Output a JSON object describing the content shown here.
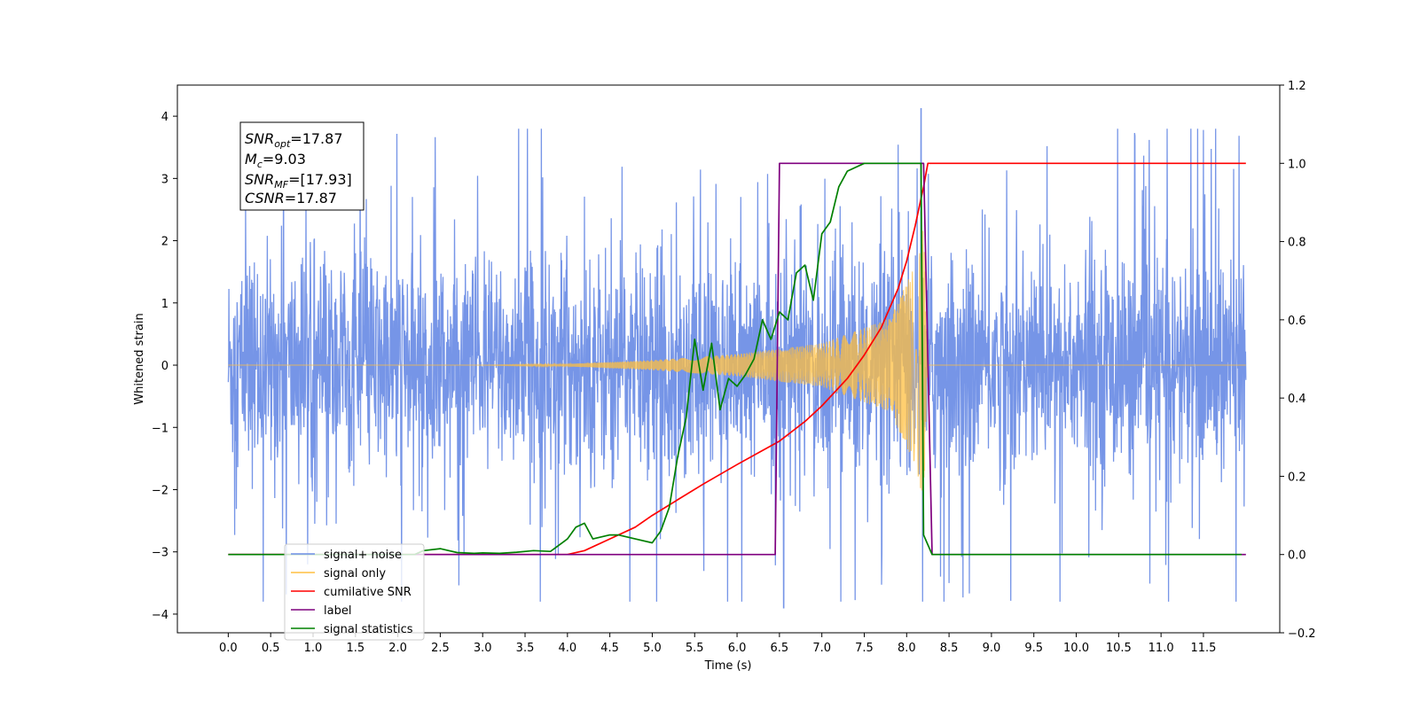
{
  "chart_data": {
    "type": "line",
    "xlabel": "Time (s)",
    "ylabel": "Whitened strain",
    "xlim": [
      -0.6,
      12.4
    ],
    "ylim": [
      -4.3,
      4.5
    ],
    "y2lim": [
      -0.2,
      1.2
    ],
    "xticks": [
      0.0,
      0.5,
      1.0,
      1.5,
      2.0,
      2.5,
      3.0,
      3.5,
      4.0,
      4.5,
      5.0,
      5.5,
      6.0,
      6.5,
      7.0,
      7.5,
      8.0,
      8.5,
      9.0,
      9.5,
      10.0,
      10.5,
      11.0,
      11.5
    ],
    "xtick_labels": [
      "0.0",
      "0.5",
      "1.0",
      "1.5",
      "2.0",
      "2.5",
      "3.0",
      "3.5",
      "4.0",
      "4.5",
      "5.0",
      "5.5",
      "6.0",
      "6.5",
      "7.0",
      "7.5",
      "8.0",
      "8.5",
      "9.0",
      "9.5",
      "10.0",
      "10.5",
      "11.0",
      "11.5"
    ],
    "yticks": [
      -4,
      -3,
      -2,
      -1,
      0,
      1,
      2,
      3,
      4
    ],
    "ytick_labels": [
      "−4",
      "−3",
      "−2",
      "−1",
      "0",
      "1",
      "2",
      "3",
      "4"
    ],
    "y2ticks": [
      -0.2,
      0.0,
      0.2,
      0.4,
      0.6,
      0.8,
      1.0,
      1.2
    ],
    "y2tick_labels": [
      "−0.2",
      "0.0",
      "0.2",
      "0.4",
      "0.6",
      "0.8",
      "1.0",
      "1.2"
    ],
    "grid": false,
    "legend_position": "lower-left",
    "annotation": {
      "lines": [
        {
          "base": "SNR",
          "sub": "opt",
          "rest": "=17.87"
        },
        {
          "base": "M",
          "sub": "c",
          "rest": "=9.03"
        },
        {
          "base": "SNR",
          "sub": "MF",
          "rest": "=[17.93]"
        },
        {
          "base": "CSNR",
          "sub": "",
          "rest": "=17.87"
        }
      ]
    },
    "series": [
      {
        "name": "signal+ noise",
        "color": "#6f8fe6",
        "axis": "left",
        "kind": "noise",
        "x_range": [
          0.0,
          12.0
        ],
        "envelope_typical": 1.6,
        "envelope_peak": 3.8,
        "notable_extremes": [
          [
            6.55,
            -3.9
          ],
          [
            8.17,
            4.12
          ],
          [
            11.5,
            3.78
          ]
        ]
      },
      {
        "name": "signal only",
        "color": "#ffbf40",
        "axis": "left",
        "kind": "chirp",
        "x_range": [
          0.0,
          12.0
        ],
        "merger_time": 8.2,
        "amplitude_at": [
          [
            3.0,
            0.0
          ],
          [
            4.0,
            0.02
          ],
          [
            5.0,
            0.08
          ],
          [
            6.0,
            0.18
          ],
          [
            7.0,
            0.35
          ],
          [
            7.8,
            0.75
          ],
          [
            8.1,
            1.6
          ],
          [
            8.2,
            2.2
          ],
          [
            8.25,
            0.0
          ]
        ]
      },
      {
        "name": "cumilative SNR",
        "color": "#ff0000",
        "axis": "right",
        "x": [
          0.0,
          3.5,
          3.8,
          4.0,
          4.2,
          4.5,
          4.8,
          5.0,
          5.3,
          5.6,
          6.0,
          6.5,
          6.8,
          7.0,
          7.3,
          7.5,
          7.7,
          7.9,
          8.0,
          8.1,
          8.15,
          8.2,
          8.25,
          12.0
        ],
        "values": [
          0.0,
          0.0,
          0.0,
          0.0,
          0.01,
          0.04,
          0.07,
          0.1,
          0.14,
          0.18,
          0.23,
          0.29,
          0.34,
          0.38,
          0.45,
          0.51,
          0.58,
          0.68,
          0.75,
          0.84,
          0.89,
          0.94,
          1.0,
          1.0
        ]
      },
      {
        "name": "label",
        "color": "#7f007f",
        "axis": "right",
        "x": [
          0.0,
          6.45,
          6.5,
          8.2,
          8.3,
          12.0
        ],
        "values": [
          0.0,
          0.0,
          1.0,
          1.0,
          0.0,
          0.0
        ]
      },
      {
        "name": "signal statistics",
        "color": "#008000",
        "axis": "right",
        "x": [
          0.0,
          2.2,
          2.3,
          2.5,
          2.7,
          2.9,
          3.0,
          3.2,
          3.4,
          3.6,
          3.8,
          4.0,
          4.1,
          4.2,
          4.3,
          4.5,
          4.6,
          4.8,
          5.0,
          5.1,
          5.2,
          5.3,
          5.4,
          5.5,
          5.6,
          5.7,
          5.8,
          5.9,
          6.0,
          6.1,
          6.2,
          6.3,
          6.4,
          6.5,
          6.6,
          6.7,
          6.8,
          6.9,
          7.0,
          7.1,
          7.2,
          7.3,
          7.5,
          8.17,
          8.2,
          8.3,
          11.95
        ],
        "values": [
          0.0,
          0.0,
          0.01,
          0.015,
          0.005,
          0.003,
          0.004,
          0.003,
          0.006,
          0.01,
          0.008,
          0.04,
          0.07,
          0.08,
          0.04,
          0.05,
          0.05,
          0.04,
          0.03,
          0.06,
          0.12,
          0.25,
          0.35,
          0.55,
          0.42,
          0.54,
          0.37,
          0.45,
          0.43,
          0.46,
          0.5,
          0.6,
          0.55,
          0.62,
          0.6,
          0.72,
          0.74,
          0.65,
          0.82,
          0.85,
          0.94,
          0.98,
          1.0,
          1.0,
          0.05,
          0.0,
          0.0
        ]
      }
    ]
  }
}
